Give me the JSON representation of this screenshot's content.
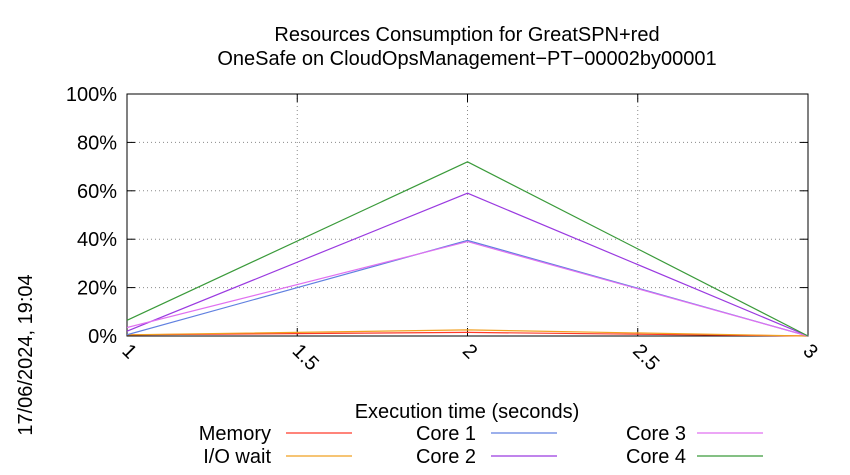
{
  "chart_data": {
    "type": "line",
    "title": [
      "Resources Consumption for GreatSPN+red",
      "OneSafe on CloudOpsManagement−PT−00002by00001"
    ],
    "xlabel": "Execution time (seconds)",
    "ylabel": "",
    "xlim": [
      1,
      3
    ],
    "ylim": [
      0,
      100
    ],
    "x_ticks": [
      "1",
      "1.5",
      "2",
      "2.5",
      "3"
    ],
    "y_ticks": [
      "0%",
      "20%",
      "40%",
      "60%",
      "80%",
      "100%"
    ],
    "timestamp": "17/06/2024, 19:04",
    "grid": true,
    "legend_position": "bottom",
    "series": [
      {
        "name": "Memory",
        "color": "#ff3a2a",
        "x": [
          1,
          2,
          3
        ],
        "y": [
          0.5,
          1.5,
          0
        ]
      },
      {
        "name": "I/O wait",
        "color": "#f0a020",
        "x": [
          1,
          2,
          3
        ],
        "y": [
          0.5,
          2.5,
          0
        ]
      },
      {
        "name": "Core 1",
        "color": "#6080e0",
        "x": [
          1,
          2,
          3
        ],
        "y": [
          0.5,
          39.5,
          0
        ]
      },
      {
        "name": "Core 2",
        "color": "#9a3ae0",
        "x": [
          1,
          2,
          3
        ],
        "y": [
          2,
          59,
          0
        ]
      },
      {
        "name": "Core 3",
        "color": "#e070f0",
        "x": [
          1,
          2,
          3
        ],
        "y": [
          3.5,
          39,
          0
        ]
      },
      {
        "name": "Core 4",
        "color": "#3a9a3a",
        "x": [
          1,
          2,
          3
        ],
        "y": [
          6.5,
          72,
          0
        ]
      }
    ]
  }
}
